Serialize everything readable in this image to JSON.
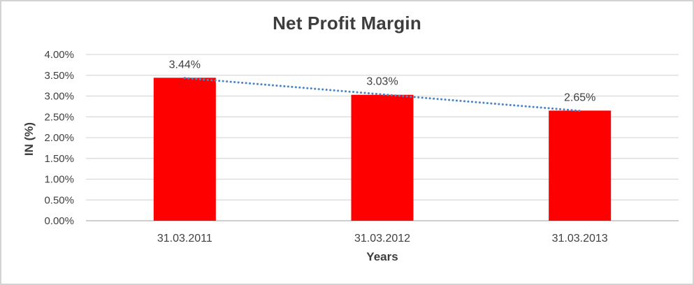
{
  "chart_data": {
    "type": "bar",
    "title": "Net Profit Margin",
    "xlabel": "Years",
    "ylabel": "IN (%)",
    "categories": [
      "31.03.2011",
      "31.03.2012",
      "31.03.2013"
    ],
    "values": [
      3.44,
      3.03,
      2.65
    ],
    "data_labels": [
      "3.44%",
      "3.03%",
      "2.65%"
    ],
    "ylim": [
      0,
      4
    ],
    "ytick_step": 0.5,
    "ytick_labels": [
      "0.00%",
      "0.50%",
      "1.00%",
      "1.50%",
      "2.00%",
      "2.50%",
      "3.00%",
      "3.50%",
      "4.00%"
    ],
    "grid": true,
    "legend": "none",
    "trendline": {
      "type": "linear",
      "style": "dotted"
    },
    "colors": {
      "bar": "#FF0000",
      "trendline": "#4A86C8",
      "gridline": "#D9D9D9",
      "axis_line": "#BFBFBF",
      "text": "#404040",
      "background": "#FFFFFF",
      "border": "#D3D3D3"
    }
  }
}
